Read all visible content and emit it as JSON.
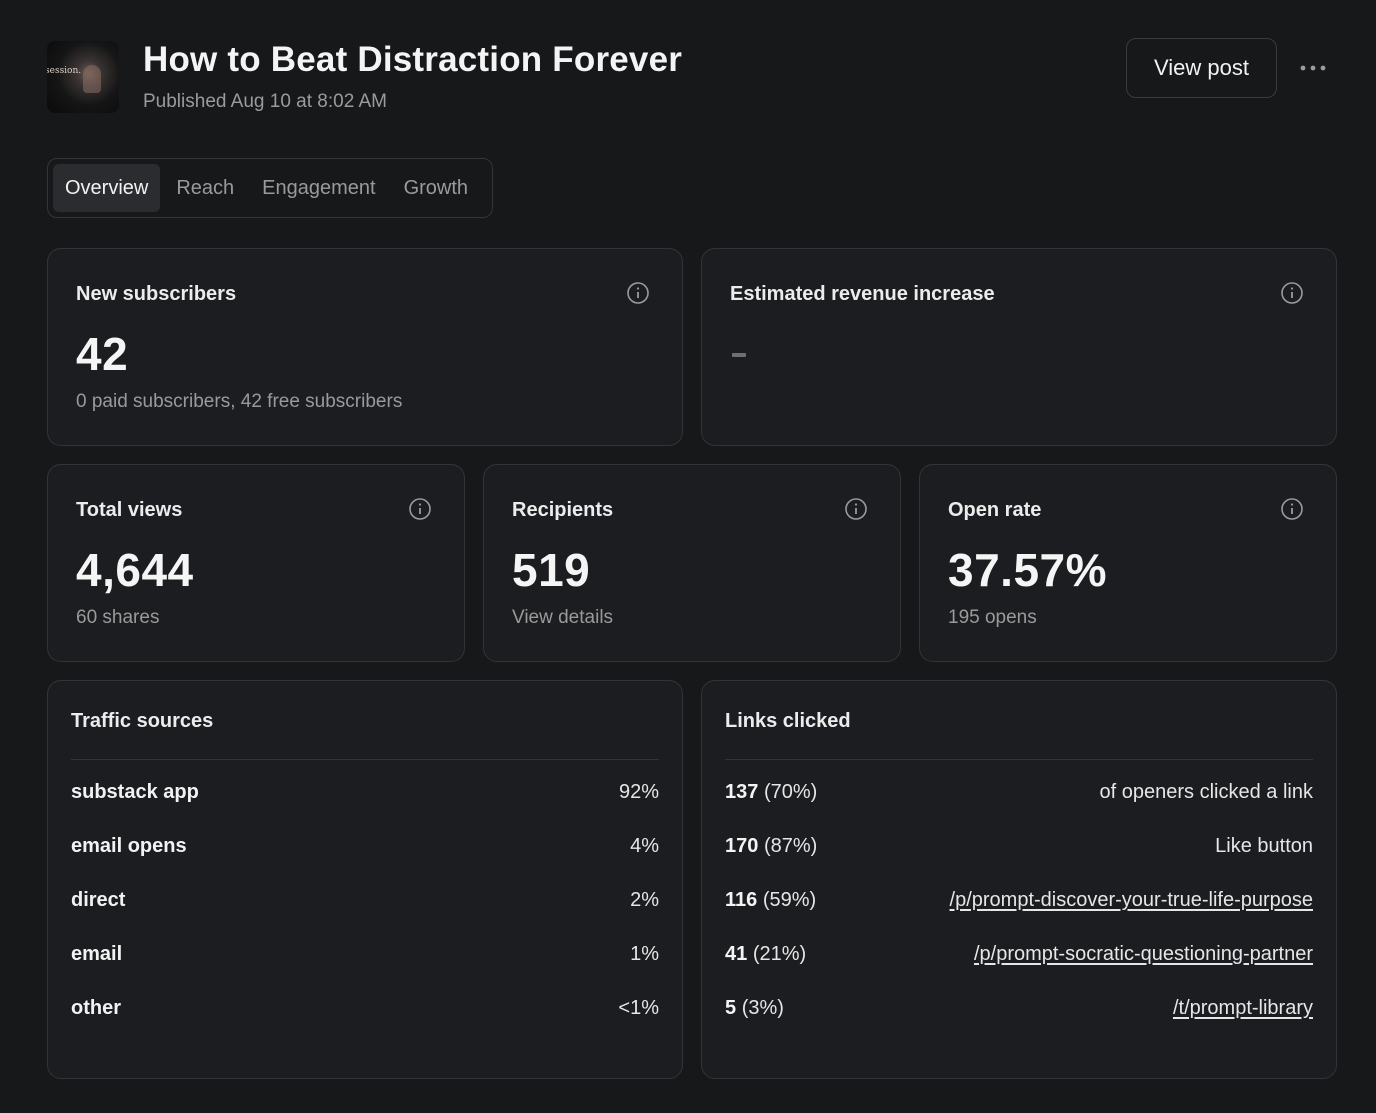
{
  "header": {
    "thumbnail_text": "session.",
    "title": "How to Beat Distraction Forever",
    "published": "Published Aug 10 at 8:02 AM",
    "view_post_label": "View post",
    "more_icon": "more-horizontal-icon"
  },
  "tabs": [
    {
      "label": "Overview",
      "active": true
    },
    {
      "label": "Reach",
      "active": false
    },
    {
      "label": "Engagement",
      "active": false
    },
    {
      "label": "Growth",
      "active": false
    }
  ],
  "cards": {
    "new_subscribers": {
      "label": "New subscribers",
      "value": "42",
      "sub": "0 paid subscribers, 42 free subscribers",
      "icon": "info-icon"
    },
    "estimated_revenue": {
      "label": "Estimated revenue increase",
      "value": "-",
      "icon": "info-icon"
    },
    "total_views": {
      "label": "Total views",
      "value": "4,644",
      "sub": "60 shares",
      "icon": "info-icon"
    },
    "recipients": {
      "label": "Recipients",
      "value": "519",
      "sub": "View details",
      "icon": "info-icon"
    },
    "open_rate": {
      "label": "Open rate",
      "value": "37.57%",
      "sub": "195 opens",
      "icon": "info-icon"
    }
  },
  "traffic_sources": {
    "title": "Traffic sources",
    "rows": [
      {
        "name": "substack app",
        "pct": "92%"
      },
      {
        "name": "email opens",
        "pct": "4%"
      },
      {
        "name": "direct",
        "pct": "2%"
      },
      {
        "name": "email",
        "pct": "1%"
      },
      {
        "name": "other",
        "pct": "<1%"
      }
    ]
  },
  "links_clicked": {
    "title": "Links clicked",
    "rows": [
      {
        "count": "137",
        "pct": "(70%)",
        "dest": "of openers clicked a link",
        "is_link": false
      },
      {
        "count": "170",
        "pct": "(87%)",
        "dest": "Like button",
        "is_link": false
      },
      {
        "count": "116",
        "pct": "(59%)",
        "dest": "/p/prompt-discover-your-true-life-purpose",
        "is_link": true
      },
      {
        "count": "41",
        "pct": "(21%)",
        "dest": "/p/prompt-socratic-questioning-partner",
        "is_link": true
      },
      {
        "count": "5",
        "pct": "(3%)",
        "dest": "/t/prompt-library",
        "is_link": true
      }
    ]
  },
  "colors": {
    "background": "#17181a",
    "card": "#1c1d20",
    "border": "#333438",
    "muted_text": "#9a9a9a"
  }
}
